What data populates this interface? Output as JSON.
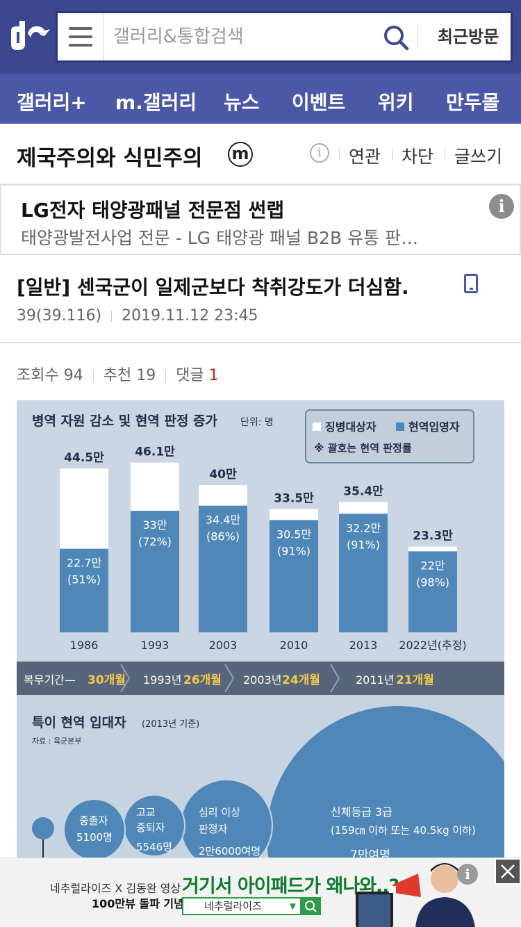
{
  "header": {
    "search_placeholder": "갤러리&통합검색",
    "recent_label": "최근방문",
    "colors": {
      "primary": "#3b4890",
      "nav": "#4b58a8"
    }
  },
  "nav": {
    "items": [
      {
        "label": "갤러리+"
      },
      {
        "label": "m.갤러리"
      },
      {
        "label": "뉴스"
      },
      {
        "label": "이벤트"
      },
      {
        "label": "위키"
      },
      {
        "label": "만두몰"
      }
    ]
  },
  "gallery": {
    "title": "제국주의와 식민주의",
    "badge": "m",
    "actions": [
      "연관",
      "차단",
      "글쓰기"
    ]
  },
  "ad": {
    "title": "LG전자 태양광패널 전문점 썬랩",
    "desc": "태양광발전사업 전문 - LG 태양광 패널 B2B 유통 판…",
    "info": "i"
  },
  "post": {
    "title": "[일반] 센국군이 일제군보다 착취강도가 더심함.",
    "author": "39(39.116)",
    "date": "2019.11.12 23:45",
    "views_label": "조회수 94",
    "recommend_label": "추천 19",
    "comments_label": "댓글",
    "comments_count": "1"
  },
  "infographic": {
    "chart_title": "병역 자원 감소 및 현역 판정 증가",
    "unit": "단위: 명",
    "legend": [
      "징병대상자",
      "현역입영자"
    ],
    "legend_note": "※ 괄호는 현역 판정률",
    "total_labels": [
      "44.5만",
      "46.1만",
      "40만",
      "33.5만",
      "35.4만",
      "23.3만"
    ],
    "active_labels": [
      "22.7만",
      "33만",
      "34.4만",
      "30.5만",
      "32.2만",
      "22만"
    ],
    "ratio_labels": [
      "(51%)",
      "(72%)",
      "(86%)",
      "(91%)",
      "(91%)",
      "(98%)"
    ],
    "years": [
      "1986",
      "1993",
      "2003",
      "2010",
      "2013",
      "2022년(추정)"
    ],
    "service_prefix": "복무기간—",
    "service_first": "30개월",
    "service_periods": [
      {
        "year": "1993년",
        "months": "26개월"
      },
      {
        "year": "2003년",
        "months": "24개월"
      },
      {
        "year": "2011년",
        "months": "21개월"
      }
    ],
    "bubble_title": "특이 현역 입대자",
    "bubble_subtitle": "(2013년 기준)",
    "source": "자료 : 육군본부",
    "bubbles": [
      {
        "label": "중졸자",
        "value": "5100명"
      },
      {
        "label": "고교\n중퇴자",
        "value": "5546명"
      },
      {
        "label": "심리 이상\n판정자",
        "value": "2만6000여명"
      },
      {
        "label": "신체등급 3급",
        "sub": "(159㎝ 이하 또는 40.5kg 이하)",
        "value": "7만여명"
      }
    ]
  },
  "chart_data": {
    "type": "bar",
    "title": "병역 자원 감소 및 현역 판정 증가",
    "unit": "단위: 명",
    "categories": [
      "1986",
      "1993",
      "2003",
      "2010",
      "2013",
      "2022년(추정)"
    ],
    "series": [
      {
        "name": "징병대상자",
        "values": [
          44.5,
          46.1,
          40,
          33.5,
          35.4,
          23.3
        ],
        "color": "#ffffff"
      },
      {
        "name": "현역입영자",
        "values": [
          22.7,
          33,
          34.4,
          30.5,
          32.2,
          22
        ],
        "color": "#4f88b8"
      }
    ],
    "ratios": [
      "51%",
      "72%",
      "86%",
      "91%",
      "91%",
      "98%"
    ]
  },
  "bottom_ad": {
    "line1": "네추럴라이즈 X 김동완 영상",
    "line2": "100만뷰 돌파 기념",
    "headline": "거기서 아이패드가 왜나와..?",
    "select_value": "네추럴라이즈",
    "info": "i"
  }
}
